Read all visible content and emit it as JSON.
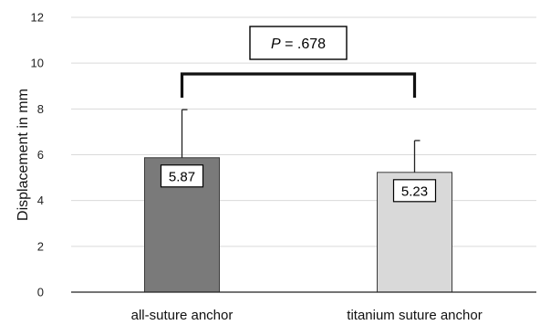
{
  "chart_data": {
    "type": "bar",
    "title": "",
    "xlabel": "",
    "ylabel": "Displacement in mm",
    "ylim": [
      0,
      12
    ],
    "yticks": [
      0,
      2,
      4,
      6,
      8,
      10,
      12
    ],
    "ytick_labels": [
      "0",
      "2",
      "4",
      "6",
      "8",
      "10",
      "12"
    ],
    "grid": true,
    "categories": [
      "all-suture anchor",
      "titanium suture anchor"
    ],
    "values": [
      5.87,
      5.23
    ],
    "value_labels": [
      "5.87",
      "5.23"
    ],
    "error_upper": [
      7.97,
      6.62
    ],
    "bar_colors": [
      "#7a7a7a",
      "#d9d9d9"
    ],
    "annotation": {
      "p_italic": "P",
      "p_text": " = .678"
    }
  }
}
